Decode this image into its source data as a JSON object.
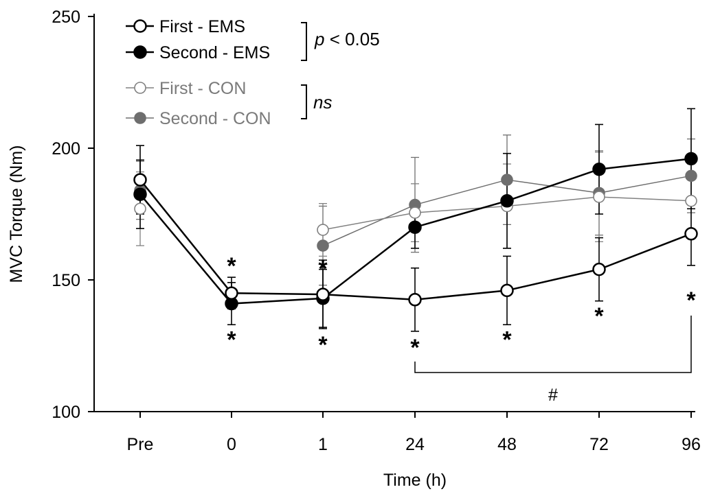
{
  "chart_data": {
    "type": "line",
    "xlabel": "Time (h)",
    "ylabel": "MVC Torque (Nm)",
    "ylim": [
      100,
      250
    ],
    "yticks": [
      100,
      150,
      200,
      250
    ],
    "categories": [
      "Pre",
      "0",
      "1",
      "24",
      "48",
      "72",
      "96"
    ],
    "grid": false,
    "legend_position": "top-left",
    "series": [
      {
        "name": "First - EMS",
        "color": "#000000",
        "marker_fill": "#ffffff",
        "values": [
          188,
          145,
          144.5,
          142.5,
          146,
          154,
          167.5
        ],
        "error": [
          13,
          6,
          13,
          12,
          13,
          12,
          12
        ]
      },
      {
        "name": "Second - EMS",
        "color": "#000000",
        "marker_fill": "#000000",
        "values": [
          182.5,
          141,
          143,
          170,
          180,
          192,
          196
        ],
        "error": [
          13,
          8,
          11,
          8,
          18,
          17,
          19
        ]
      },
      {
        "name": "First - CON",
        "color": "#808080",
        "marker_fill": "#ffffff",
        "values": [
          177,
          null,
          169,
          175.5,
          178,
          181.5,
          180
        ],
        "error": [
          14,
          null,
          10,
          11,
          16,
          17,
          14
        ]
      },
      {
        "name": "Second - CON",
        "color": "#6e6e6e",
        "marker_fill": "#6e6e6e",
        "values": [
          184,
          null,
          163,
          178.5,
          188,
          183,
          189.5
        ],
        "error": [
          11,
          null,
          15,
          18,
          17,
          16,
          14
        ]
      }
    ],
    "brackets": [
      {
        "label": "p < 0.05",
        "series": [
          "First - EMS",
          "Second - EMS"
        ]
      },
      {
        "label": "ns",
        "series": [
          "First - CON",
          "Second - CON"
        ]
      }
    ],
    "significance_markers": [
      {
        "category": "0",
        "value": 156,
        "label": "*"
      },
      {
        "category": "0",
        "value": 128,
        "label": "*"
      },
      {
        "category": "1",
        "value": 155,
        "label": "*"
      },
      {
        "category": "1",
        "value": 126,
        "label": "*"
      },
      {
        "category": "24",
        "value": 125,
        "label": "*"
      },
      {
        "category": "48",
        "value": 128,
        "label": "*"
      },
      {
        "category": "72",
        "value": 137,
        "label": "*"
      },
      {
        "category": "96",
        "value": 143,
        "label": "*"
      }
    ],
    "range_bracket": {
      "from": "24",
      "to": "96",
      "label": "#"
    }
  }
}
